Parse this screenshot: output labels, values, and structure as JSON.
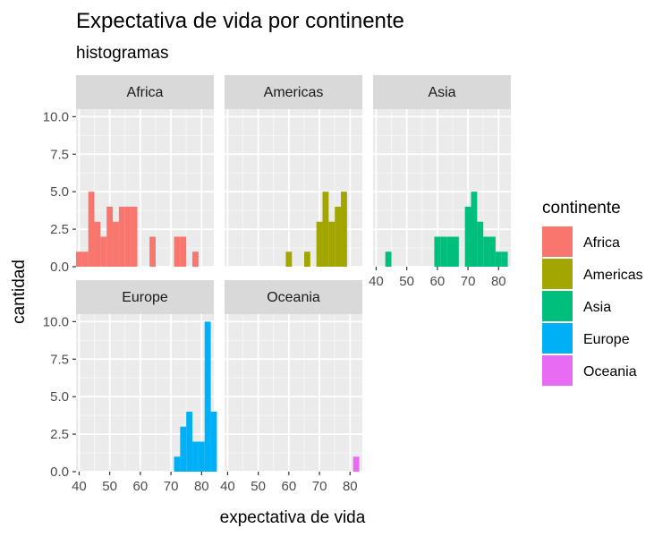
{
  "chart_data": {
    "type": "bar",
    "title": "Expectativa de vida por continente",
    "subtitle": "histogramas",
    "xlabel": "expectativa de vida",
    "ylabel": "cantidad",
    "xlim": [
      39,
      84
    ],
    "ylim": [
      0,
      10.5
    ],
    "x_ticks": [
      40,
      50,
      60,
      70,
      80
    ],
    "y_ticks": [
      0,
      2.5,
      5,
      7.5,
      10
    ],
    "y_tick_labels": [
      "0.0",
      "2.5",
      "5.0",
      "7.5",
      "10.0"
    ],
    "grid": true,
    "legend": {
      "title": "continente",
      "position": "right",
      "entries": [
        "Africa",
        "Americas",
        "Asia",
        "Europe",
        "Oceania"
      ]
    },
    "bin_width": 2,
    "panels": [
      {
        "name": "Africa",
        "color": "#F8766D",
        "bins": [
          {
            "x": 40,
            "count": 1
          },
          {
            "x": 42,
            "count": 1
          },
          {
            "x": 44,
            "count": 5
          },
          {
            "x": 46,
            "count": 3
          },
          {
            "x": 48,
            "count": 2
          },
          {
            "x": 50,
            "count": 4
          },
          {
            "x": 52,
            "count": 3
          },
          {
            "x": 54,
            "count": 4
          },
          {
            "x": 56,
            "count": 4
          },
          {
            "x": 58,
            "count": 4
          },
          {
            "x": 64,
            "count": 2
          },
          {
            "x": 72,
            "count": 2
          },
          {
            "x": 74,
            "count": 2
          },
          {
            "x": 78,
            "count": 1
          }
        ]
      },
      {
        "name": "Americas",
        "color": "#A3A500",
        "bins": [
          {
            "x": 60,
            "count": 1
          },
          {
            "x": 66,
            "count": 1
          },
          {
            "x": 70,
            "count": 3
          },
          {
            "x": 72,
            "count": 5
          },
          {
            "x": 74,
            "count": 3
          },
          {
            "x": 76,
            "count": 4
          },
          {
            "x": 78,
            "count": 5
          }
        ]
      },
      {
        "name": "Asia",
        "color": "#00BF7D",
        "bins": [
          {
            "x": 44,
            "count": 1
          },
          {
            "x": 60,
            "count": 2
          },
          {
            "x": 62,
            "count": 2
          },
          {
            "x": 64,
            "count": 2
          },
          {
            "x": 66,
            "count": 2
          },
          {
            "x": 70,
            "count": 4
          },
          {
            "x": 72,
            "count": 5
          },
          {
            "x": 74,
            "count": 3
          },
          {
            "x": 76,
            "count": 2
          },
          {
            "x": 78,
            "count": 2
          },
          {
            "x": 80,
            "count": 1
          },
          {
            "x": 82,
            "count": 1
          }
        ]
      },
      {
        "name": "Europe",
        "color": "#00B0F6",
        "bins": [
          {
            "x": 72,
            "count": 1
          },
          {
            "x": 74,
            "count": 3
          },
          {
            "x": 76,
            "count": 4
          },
          {
            "x": 78,
            "count": 2
          },
          {
            "x": 80,
            "count": 2
          },
          {
            "x": 82,
            "count": 10
          },
          {
            "x": 84,
            "count": 4
          }
        ]
      },
      {
        "name": "Oceania",
        "color": "#E76BF3",
        "bins": [
          {
            "x": 82,
            "count": 1
          }
        ]
      }
    ]
  }
}
